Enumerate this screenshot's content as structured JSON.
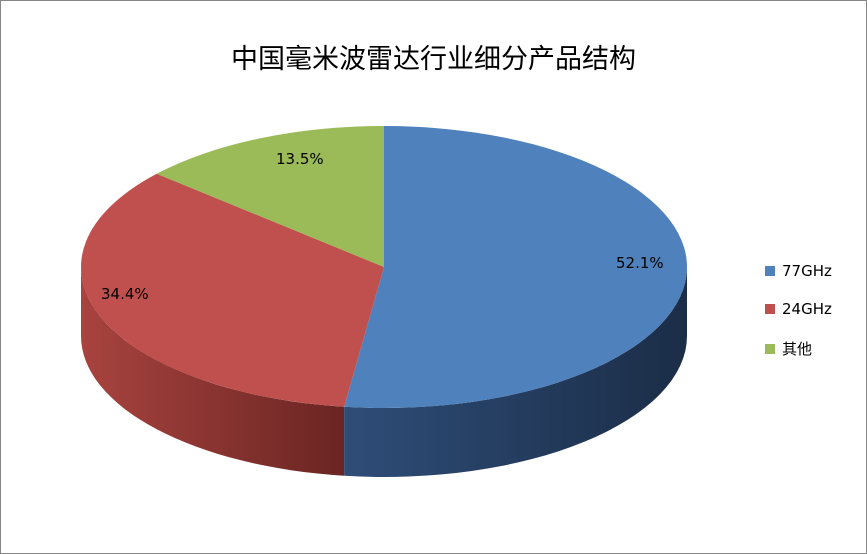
{
  "chart_data": {
    "type": "pie",
    "style": "3d",
    "title": "中国毫米波雷达行业细分产品结构",
    "categories": [
      "77GHz",
      "24GHz",
      "其他"
    ],
    "values": [
      52.1,
      34.4,
      13.5
    ],
    "data_labels": [
      "52.1%",
      "34.4%",
      "13.5%"
    ],
    "colors": [
      "#4f81bd",
      "#c0504d",
      "#9bbb59"
    ],
    "legend_position": "right"
  }
}
